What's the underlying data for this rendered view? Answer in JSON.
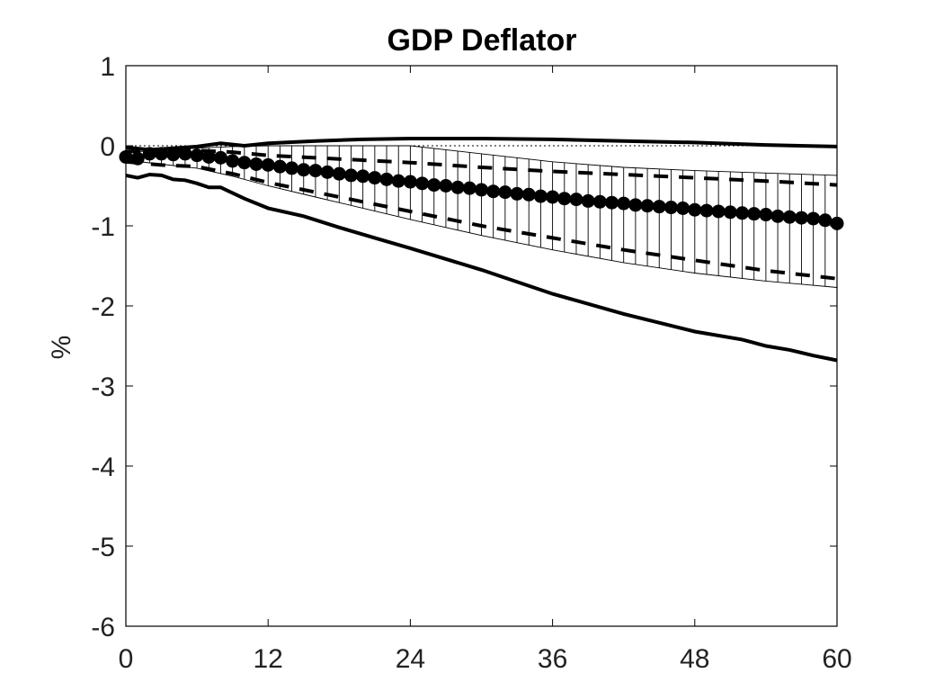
{
  "chart_data": {
    "type": "line",
    "title": "GDP Deflator",
    "xlabel": "",
    "ylabel": "%",
    "xlim": [
      0,
      60
    ],
    "ylim": [
      -6,
      1
    ],
    "xticks": [
      "0",
      "12",
      "24",
      "36",
      "48",
      "60"
    ],
    "yticks": [
      "1",
      "0",
      "-1",
      "-2",
      "-3",
      "-4",
      "-5",
      "-6"
    ],
    "grid": false,
    "legend": "none",
    "colors": {
      "line": "#000000",
      "background": "#ffffff"
    },
    "series": [
      {
        "style": "dotted",
        "x": [
          0,
          60
        ],
        "y": [
          0,
          0
        ]
      },
      {
        "style": "solid-thick",
        "x": [
          0,
          2,
          4,
          6,
          8,
          10,
          12,
          16,
          20,
          24,
          30,
          36,
          42,
          48,
          54,
          60
        ],
        "y": [
          -0.02,
          -0.05,
          -0.03,
          -0.01,
          0.03,
          0.0,
          0.03,
          0.06,
          0.08,
          0.09,
          0.09,
          0.08,
          0.06,
          0.04,
          0.01,
          -0.01
        ]
      },
      {
        "style": "solid-thick",
        "x": [
          0,
          1,
          2,
          3,
          4,
          5,
          6,
          7,
          8,
          10,
          12,
          15,
          18,
          21,
          24,
          30,
          36,
          42,
          48,
          52,
          54,
          56,
          58,
          60
        ],
        "y": [
          -0.37,
          -0.4,
          -0.36,
          -0.37,
          -0.42,
          -0.43,
          -0.47,
          -0.52,
          -0.52,
          -0.66,
          -0.78,
          -0.88,
          -1.02,
          -1.15,
          -1.28,
          -1.55,
          -1.85,
          -2.1,
          -2.32,
          -2.42,
          -2.5,
          -2.55,
          -2.62,
          -2.68
        ]
      },
      {
        "style": "dashed",
        "x": [
          0,
          3,
          6,
          9,
          12,
          16,
          20,
          24,
          30,
          36,
          42,
          48,
          54,
          60
        ],
        "y": [
          -0.07,
          -0.07,
          -0.06,
          -0.08,
          -0.12,
          -0.15,
          -0.18,
          -0.21,
          -0.27,
          -0.32,
          -0.36,
          -0.4,
          -0.44,
          -0.49
        ]
      },
      {
        "style": "dashed",
        "x": [
          0,
          3,
          6,
          9,
          12,
          16,
          20,
          24,
          30,
          36,
          42,
          48,
          54,
          60
        ],
        "y": [
          -0.2,
          -0.24,
          -0.26,
          -0.35,
          -0.46,
          -0.58,
          -0.7,
          -0.82,
          -1.0,
          -1.15,
          -1.3,
          -1.43,
          -1.56,
          -1.66
        ]
      },
      {
        "style": "markers",
        "x": [
          0,
          1,
          2,
          3,
          4,
          5,
          6,
          7,
          8,
          9,
          10,
          11,
          12,
          13,
          14,
          15,
          16,
          17,
          18,
          19,
          20,
          21,
          22,
          23,
          24,
          25,
          26,
          27,
          28,
          29,
          30,
          31,
          32,
          33,
          34,
          35,
          36,
          37,
          38,
          39,
          40,
          41,
          42,
          43,
          44,
          45,
          46,
          47,
          48,
          49,
          50,
          51,
          52,
          53,
          54,
          55,
          56,
          57,
          58,
          59,
          60
        ],
        "y": [
          -0.14,
          -0.16,
          -0.1,
          -0.1,
          -0.11,
          -0.1,
          -0.12,
          -0.14,
          -0.15,
          -0.19,
          -0.21,
          -0.23,
          -0.24,
          -0.26,
          -0.28,
          -0.3,
          -0.31,
          -0.33,
          -0.35,
          -0.37,
          -0.38,
          -0.4,
          -0.42,
          -0.44,
          -0.45,
          -0.47,
          -0.49,
          -0.5,
          -0.52,
          -0.53,
          -0.55,
          -0.57,
          -0.58,
          -0.6,
          -0.61,
          -0.63,
          -0.64,
          -0.66,
          -0.67,
          -0.69,
          -0.7,
          -0.71,
          -0.72,
          -0.74,
          -0.75,
          -0.76,
          -0.77,
          -0.78,
          -0.8,
          -0.81,
          -0.82,
          -0.83,
          -0.84,
          -0.85,
          -0.86,
          -0.88,
          -0.89,
          -0.9,
          -0.91,
          -0.93,
          -0.97
        ]
      },
      {
        "style": "band-hatched",
        "x": [
          0,
          3,
          6,
          9,
          12,
          16,
          20,
          24,
          30,
          36,
          42,
          48,
          54,
          60
        ],
        "y_upper": [
          -0.08,
          -0.06,
          -0.03,
          -0.01,
          0.0,
          0.0,
          0.0,
          0.0,
          -0.1,
          -0.2,
          -0.27,
          -0.31,
          -0.34,
          -0.37
        ],
        "y_lower": [
          -0.18,
          -0.23,
          -0.28,
          -0.38,
          -0.5,
          -0.64,
          -0.78,
          -0.92,
          -1.12,
          -1.3,
          -1.46,
          -1.59,
          -1.69,
          -1.77
        ]
      }
    ]
  }
}
